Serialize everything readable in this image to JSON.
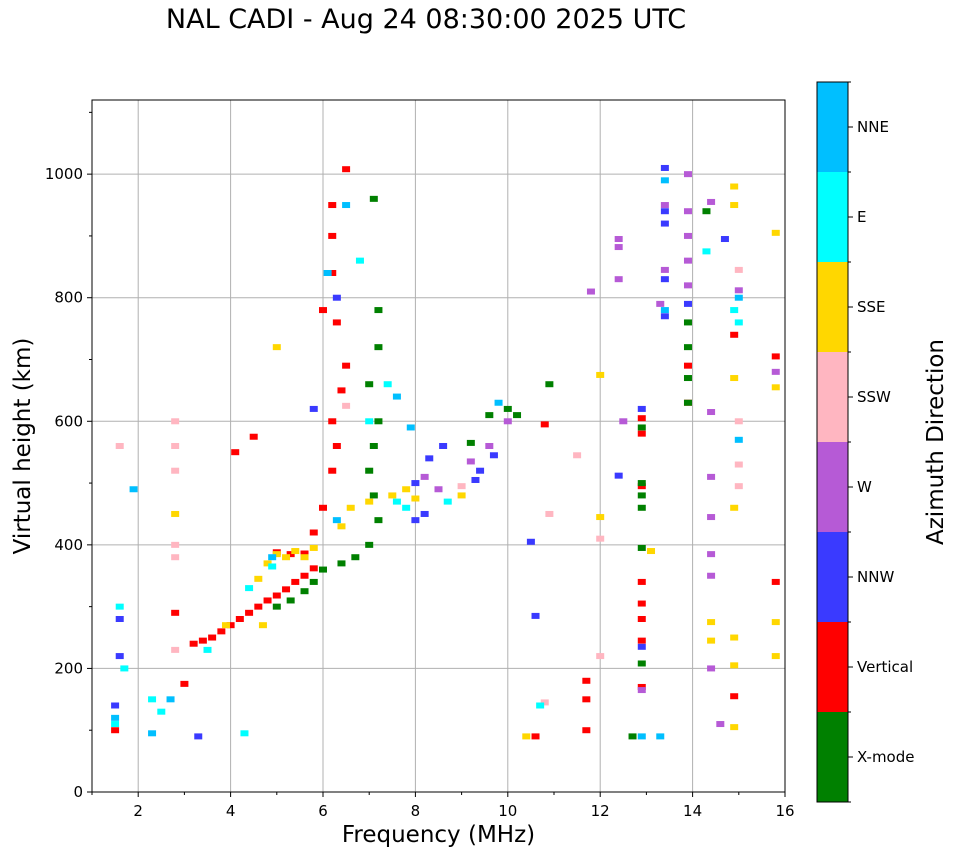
{
  "chart_data": {
    "type": "scatter",
    "title": "NAL CADI - Aug 24 08:30:00 2025 UTC",
    "xlabel": "Frequency (MHz)",
    "ylabel": "Virtual height (km)",
    "xlim": [
      1,
      16
    ],
    "ylim": [
      0,
      1120
    ],
    "xticks": [
      2,
      4,
      6,
      8,
      10,
      12,
      14,
      16
    ],
    "yticks": [
      0,
      200,
      400,
      600,
      800,
      1000
    ],
    "grid": true,
    "colorbar": {
      "label": "Azimuth Direction",
      "categories": [
        "X-mode",
        "Vertical",
        "NNW",
        "W",
        "SSW",
        "SSE",
        "E",
        "NNE"
      ],
      "colors": [
        "#008000",
        "#ff0000",
        "#3a3aff",
        "#b65ad6",
        "#ffb6c1",
        "#ffd700",
        "#00ffff",
        "#00bfff"
      ]
    },
    "series": [
      {
        "name": "Vertical",
        "color": "#ff0000",
        "points": [
          [
            3.2,
            240
          ],
          [
            3.4,
            245
          ],
          [
            3.6,
            250
          ],
          [
            3.8,
            260
          ],
          [
            4.0,
            270
          ],
          [
            4.2,
            280
          ],
          [
            4.4,
            290
          ],
          [
            4.6,
            300
          ],
          [
            4.8,
            310
          ],
          [
            5.0,
            318
          ],
          [
            5.2,
            328
          ],
          [
            5.4,
            340
          ],
          [
            5.6,
            350
          ],
          [
            5.8,
            362
          ],
          [
            5.6,
            386
          ],
          [
            5.3,
            385
          ],
          [
            5.0,
            388
          ],
          [
            5.8,
            420
          ],
          [
            6.0,
            460
          ],
          [
            6.2,
            520
          ],
          [
            6.3,
            560
          ],
          [
            6.2,
            600
          ],
          [
            6.4,
            650
          ],
          [
            6.5,
            690
          ],
          [
            6.3,
            760
          ],
          [
            6.0,
            780
          ],
          [
            6.2,
            840
          ],
          [
            6.2,
            900
          ],
          [
            6.2,
            950
          ],
          [
            6.5,
            1008
          ],
          [
            1.5,
            100
          ],
          [
            3.0,
            175
          ],
          [
            2.8,
            290
          ],
          [
            4.1,
            550
          ],
          [
            4.5,
            575
          ],
          [
            10.6,
            90
          ],
          [
            11.7,
            100
          ],
          [
            11.7,
            150
          ],
          [
            11.7,
            180
          ],
          [
            12.9,
            605
          ],
          [
            12.9,
            580
          ],
          [
            12.9,
            495
          ],
          [
            12.9,
            340
          ],
          [
            12.9,
            305
          ],
          [
            12.9,
            280
          ],
          [
            12.9,
            245
          ],
          [
            12.9,
            170
          ],
          [
            14.9,
            740
          ],
          [
            14.9,
            155
          ],
          [
            15.8,
            340
          ],
          [
            15.8,
            705
          ],
          [
            13.9,
            690
          ],
          [
            13.9,
            630
          ],
          [
            10.8,
            595
          ]
        ]
      },
      {
        "name": "X-mode",
        "color": "#008000",
        "points": [
          [
            5.0,
            300
          ],
          [
            5.3,
            310
          ],
          [
            5.6,
            325
          ],
          [
            5.8,
            340
          ],
          [
            6.0,
            360
          ],
          [
            6.4,
            370
          ],
          [
            6.7,
            380
          ],
          [
            7.0,
            400
          ],
          [
            7.2,
            440
          ],
          [
            7.1,
            480
          ],
          [
            7.0,
            520
          ],
          [
            7.1,
            560
          ],
          [
            7.2,
            600
          ],
          [
            7.0,
            660
          ],
          [
            7.2,
            720
          ],
          [
            7.2,
            780
          ],
          [
            9.2,
            565
          ],
          [
            9.6,
            610
          ],
          [
            10.0,
            620
          ],
          [
            10.2,
            610
          ],
          [
            10.9,
            660
          ],
          [
            12.9,
            590
          ],
          [
            12.9,
            500
          ],
          [
            12.9,
            480
          ],
          [
            12.9,
            460
          ],
          [
            12.9,
            395
          ],
          [
            12.9,
            208
          ],
          [
            12.7,
            90
          ],
          [
            13.9,
            760
          ],
          [
            13.9,
            720
          ],
          [
            13.9,
            670
          ],
          [
            13.9,
            630
          ],
          [
            14.3,
            940
          ],
          [
            7.1,
            960
          ]
        ]
      },
      {
        "name": "NNW",
        "color": "#3a3aff",
        "points": [
          [
            1.6,
            220
          ],
          [
            1.6,
            280
          ],
          [
            1.5,
            140
          ],
          [
            3.3,
            90
          ],
          [
            8.0,
            500
          ],
          [
            8.3,
            540
          ],
          [
            8.6,
            560
          ],
          [
            8.2,
            450
          ],
          [
            8.0,
            440
          ],
          [
            9.3,
            505
          ],
          [
            9.7,
            545
          ],
          [
            9.4,
            520
          ],
          [
            10.5,
            405
          ],
          [
            10.6,
            285
          ],
          [
            12.4,
            512
          ],
          [
            13.4,
            1010
          ],
          [
            13.4,
            940
          ],
          [
            13.4,
            920
          ],
          [
            13.4,
            830
          ],
          [
            13.4,
            770
          ],
          [
            12.9,
            620
          ],
          [
            12.9,
            235
          ],
          [
            13.9,
            790
          ],
          [
            14.7,
            895
          ],
          [
            6.3,
            800
          ],
          [
            5.8,
            620
          ]
        ]
      },
      {
        "name": "W",
        "color": "#b65ad6",
        "points": [
          [
            8.2,
            510
          ],
          [
            8.5,
            490
          ],
          [
            9.2,
            535
          ],
          [
            9.6,
            560
          ],
          [
            10.0,
            600
          ],
          [
            12.4,
            895
          ],
          [
            12.4,
            882
          ],
          [
            12.4,
            830
          ],
          [
            11.8,
            810
          ],
          [
            13.3,
            790
          ],
          [
            13.4,
            950
          ],
          [
            13.4,
            845
          ],
          [
            13.9,
            1000
          ],
          [
            13.9,
            940
          ],
          [
            13.9,
            900
          ],
          [
            13.9,
            860
          ],
          [
            13.9,
            820
          ],
          [
            14.4,
            955
          ],
          [
            14.4,
            615
          ],
          [
            14.4,
            445
          ],
          [
            14.4,
            385
          ],
          [
            14.4,
            350
          ],
          [
            14.4,
            200
          ],
          [
            14.6,
            110
          ],
          [
            15.0,
            812
          ],
          [
            15.8,
            680
          ],
          [
            12.9,
            165
          ],
          [
            14.4,
            510
          ],
          [
            12.5,
            600
          ]
        ]
      },
      {
        "name": "SSW",
        "color": "#ffb6c1",
        "points": [
          [
            2.8,
            600
          ],
          [
            2.8,
            560
          ],
          [
            2.8,
            520
          ],
          [
            2.8,
            400
          ],
          [
            2.8,
            380
          ],
          [
            1.6,
            560
          ],
          [
            2.8,
            230
          ],
          [
            10.8,
            145
          ],
          [
            10.9,
            450
          ],
          [
            11.5,
            545
          ],
          [
            12.0,
            410
          ],
          [
            12.0,
            220
          ],
          [
            15.0,
            845
          ],
          [
            15.0,
            600
          ],
          [
            15.0,
            530
          ],
          [
            15.0,
            495
          ],
          [
            9.0,
            495
          ],
          [
            6.5,
            625
          ]
        ]
      },
      {
        "name": "SSE",
        "color": "#ffd700",
        "points": [
          [
            4.6,
            345
          ],
          [
            4.8,
            370
          ],
          [
            5.0,
            385
          ],
          [
            5.2,
            380
          ],
          [
            5.4,
            390
          ],
          [
            5.6,
            380
          ],
          [
            5.8,
            395
          ],
          [
            4.7,
            270
          ],
          [
            3.9,
            270
          ],
          [
            6.4,
            430
          ],
          [
            6.6,
            460
          ],
          [
            7.0,
            470
          ],
          [
            7.5,
            480
          ],
          [
            7.8,
            490
          ],
          [
            8.0,
            475
          ],
          [
            5.0,
            720
          ],
          [
            10.4,
            90
          ],
          [
            12.0,
            445
          ],
          [
            12.0,
            675
          ],
          [
            13.1,
            390
          ],
          [
            14.4,
            275
          ],
          [
            14.4,
            245
          ],
          [
            14.9,
            980
          ],
          [
            14.9,
            950
          ],
          [
            14.9,
            670
          ],
          [
            14.9,
            460
          ],
          [
            14.9,
            250
          ],
          [
            14.9,
            205
          ],
          [
            14.9,
            105
          ],
          [
            15.8,
            905
          ],
          [
            15.8,
            655
          ],
          [
            15.8,
            275
          ],
          [
            15.8,
            220
          ],
          [
            9.0,
            480
          ],
          [
            2.8,
            450
          ]
        ]
      },
      {
        "name": "E",
        "color": "#00ffff",
        "points": [
          [
            1.6,
            300
          ],
          [
            1.7,
            200
          ],
          [
            1.5,
            110
          ],
          [
            2.3,
            150
          ],
          [
            2.5,
            130
          ],
          [
            3.5,
            230
          ],
          [
            4.4,
            330
          ],
          [
            4.9,
            365
          ],
          [
            6.8,
            860
          ],
          [
            7.0,
            600
          ],
          [
            7.4,
            660
          ],
          [
            7.6,
            470
          ],
          [
            7.8,
            460
          ],
          [
            10.7,
            140
          ],
          [
            14.3,
            875
          ],
          [
            14.9,
            780
          ],
          [
            15.0,
            760
          ],
          [
            4.3,
            95
          ],
          [
            8.7,
            470
          ]
        ]
      },
      {
        "name": "NNE",
        "color": "#00bfff",
        "points": [
          [
            1.5,
            120
          ],
          [
            1.9,
            490
          ],
          [
            2.3,
            95
          ],
          [
            2.7,
            150
          ],
          [
            6.5,
            950
          ],
          [
            6.1,
            840
          ],
          [
            6.3,
            440
          ],
          [
            7.6,
            640
          ],
          [
            7.9,
            590
          ],
          [
            9.8,
            630
          ],
          [
            13.4,
            990
          ],
          [
            13.4,
            780
          ],
          [
            15.0,
            570
          ],
          [
            12.9,
            90
          ],
          [
            13.3,
            90
          ],
          [
            15.0,
            800
          ],
          [
            4.9,
            380
          ]
        ]
      }
    ]
  }
}
